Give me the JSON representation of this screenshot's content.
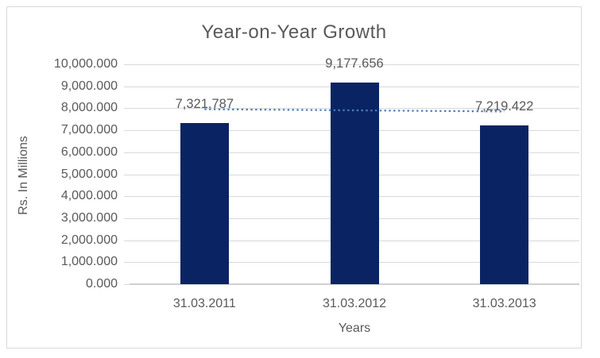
{
  "chart_data": {
    "type": "bar",
    "title": "Year-on-Year Growth",
    "xlabel": "Years",
    "ylabel": "Rs. In Millions",
    "categories": [
      "31.03.2011",
      "31.03.2012",
      "31.03.2013"
    ],
    "values": [
      7321.787,
      9177.656,
      7219.422
    ],
    "data_labels": [
      "7,321.787",
      "9,177.656",
      "7,219.422"
    ],
    "ylim": [
      0,
      10000
    ],
    "ytick_step": 1000,
    "ytick_labels": [
      "0.000",
      "1,000.000",
      "2,000.000",
      "3,000.000",
      "4,000.000",
      "5,000.000",
      "6,000.000",
      "7,000.000",
      "8,000.000",
      "9,000.000",
      "10,000.000"
    ],
    "grid": true,
    "legend": "none",
    "trendline": {
      "type": "linear",
      "style": "dotted"
    },
    "colors": {
      "bar": "#0a2463",
      "trendline": "#4a7cbd",
      "text": "#595959",
      "gridline": "#d9d9d9",
      "axis_line": "#d0d0d0",
      "chart_border": "#d9d9d9",
      "background": "#ffffff"
    }
  }
}
